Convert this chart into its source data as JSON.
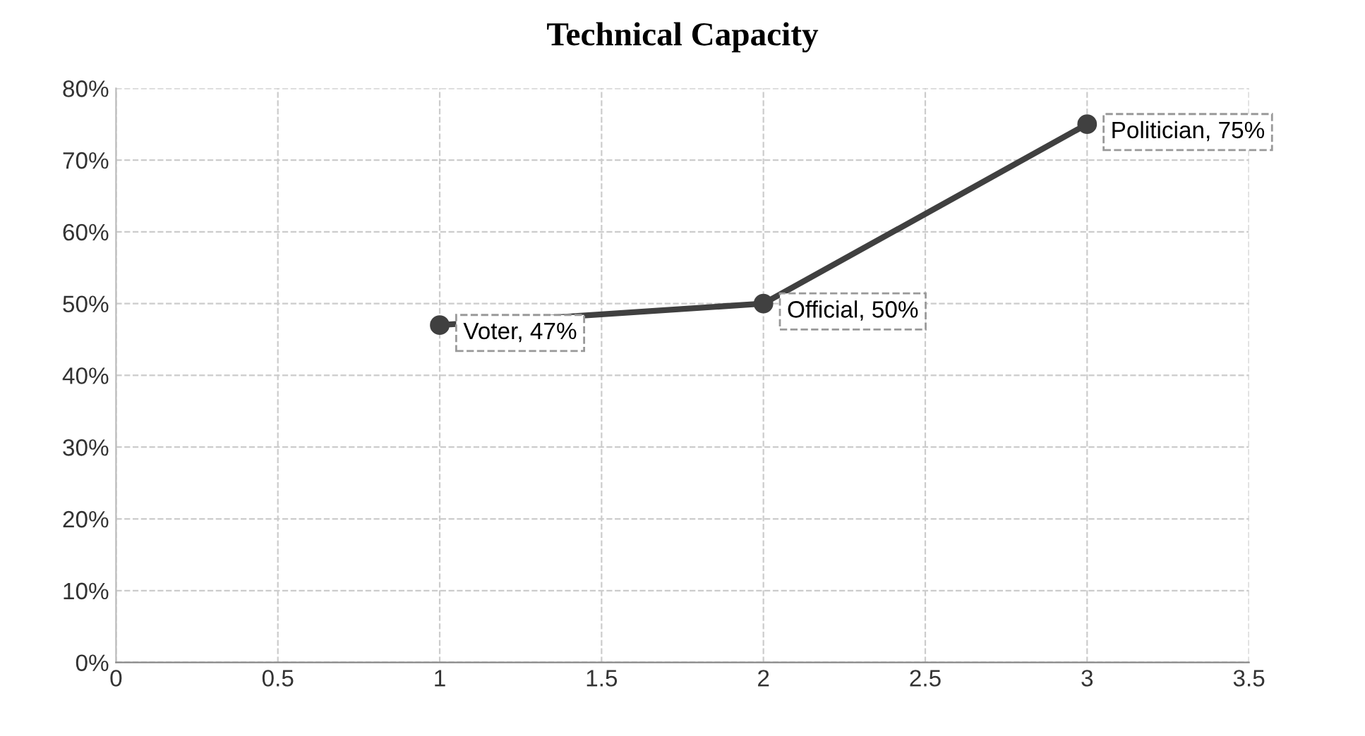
{
  "chart_data": {
    "type": "line",
    "title": "Technical Capacity",
    "x": [
      1,
      2,
      3
    ],
    "series": [
      {
        "color": "#404040",
        "values": [
          47,
          50,
          75
        ]
      }
    ],
    "xlim": [
      0,
      3.5
    ],
    "xticks": [
      0,
      0.5,
      1,
      1.5,
      2,
      2.5,
      3,
      3.5
    ],
    "ylim": [
      0,
      80
    ],
    "yticks": [
      {
        "value": 0,
        "label": "0%"
      },
      {
        "value": 10,
        "label": "10%"
      },
      {
        "value": 20,
        "label": "20%"
      },
      {
        "value": 30,
        "label": "30%"
      },
      {
        "value": 40,
        "label": "40%"
      },
      {
        "value": 50,
        "label": "50%"
      },
      {
        "value": 60,
        "label": "60%"
      },
      {
        "value": 70,
        "label": "70%"
      },
      {
        "value": 80,
        "label": "80%"
      }
    ],
    "annotations": [
      {
        "text": "Voter, 47%",
        "x": 1,
        "y": 47
      },
      {
        "text": "Official, 50%",
        "x": 2,
        "y": 50
      },
      {
        "text": "Politician, 75%",
        "x": 3,
        "y": 75
      }
    ],
    "grid": true,
    "marker": "circle",
    "line_style": "solid"
  }
}
